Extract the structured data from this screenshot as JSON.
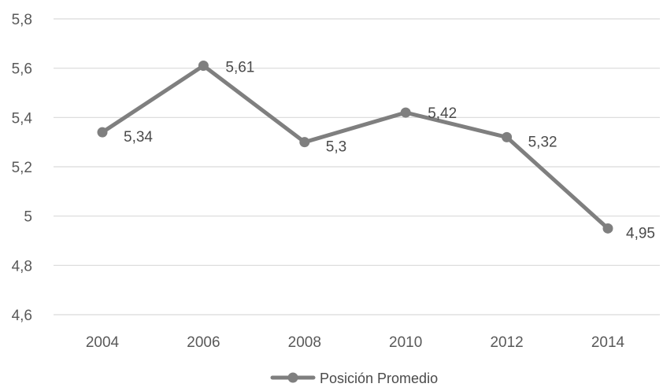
{
  "chart_data": {
    "type": "line",
    "categories": [
      "2004",
      "2006",
      "2008",
      "2010",
      "2012",
      "2014"
    ],
    "series": [
      {
        "name": "Posición Promedio",
        "values": [
          5.34,
          5.61,
          5.3,
          5.42,
          5.32,
          4.95
        ],
        "labels": [
          "5,34",
          "5,61",
          "5,3",
          "5,42",
          "5,32",
          "4,95"
        ]
      }
    ],
    "yticks": [
      {
        "value": 5.8,
        "label": "5,8"
      },
      {
        "value": 5.6,
        "label": "5,6"
      },
      {
        "value": 5.4,
        "label": "5,4"
      },
      {
        "value": 5.2,
        "label": "5,2"
      },
      {
        "value": 5.0,
        "label": "5"
      },
      {
        "value": 4.8,
        "label": "4,8"
      },
      {
        "value": 4.6,
        "label": "4,6"
      }
    ],
    "ylim": [
      4.6,
      5.8
    ],
    "grid": true,
    "legend_position": "bottom",
    "colors": {
      "line": "#7f7f7f",
      "marker": "#7f7f7f",
      "grid": "#d9d9d9",
      "text": "#595959"
    }
  }
}
